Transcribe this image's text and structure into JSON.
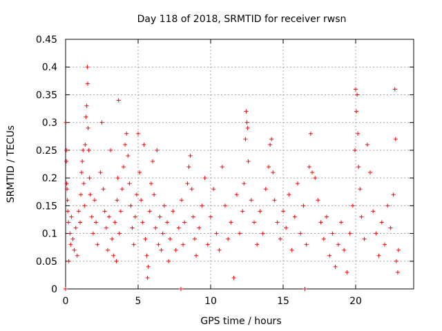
{
  "chart_data": {
    "type": "scatter",
    "title": "Day 118 of 2018, SRMTID for receiver rwsn",
    "xlabel": "GPS time / hours",
    "ylabel": "SRMTID / TECUs",
    "xlim": [
      0,
      24
    ],
    "ylim": [
      0,
      0.45
    ],
    "xticks": [
      0,
      5,
      10,
      15,
      20
    ],
    "xtick_labels": [
      "0",
      "5",
      "10",
      "15",
      "20"
    ],
    "yticks": [
      0,
      0.05,
      0.1,
      0.15,
      0.2,
      0.25,
      0.3,
      0.35,
      0.4,
      0.45
    ],
    "ytick_labels": [
      "0",
      "0.05",
      "0.1",
      "0.15",
      "0.2",
      "0.25",
      "0.3",
      "0.35",
      "0.4",
      "0.45"
    ],
    "grid": true,
    "marker": "+",
    "series": [
      {
        "name": "SRMTID",
        "color": "#ff0000",
        "points": [
          [
            0.0,
            0.0
          ],
          [
            0.02,
            0.3
          ],
          [
            0.05,
            0.25
          ],
          [
            0.05,
            0.23
          ],
          [
            0.07,
            0.19
          ],
          [
            0.1,
            0.18
          ],
          [
            0.12,
            0.16
          ],
          [
            0.15,
            0.14
          ],
          [
            0.2,
            0.12
          ],
          [
            0.22,
            0.05
          ],
          [
            0.3,
            0.1
          ],
          [
            0.35,
            0.08
          ],
          [
            0.4,
            0.13
          ],
          [
            0.5,
            0.09
          ],
          [
            0.6,
            0.07
          ],
          [
            0.7,
            0.11
          ],
          [
            0.8,
            0.06
          ],
          [
            0.9,
            0.14
          ],
          [
            1.0,
            0.12
          ],
          [
            1.05,
            0.17
          ],
          [
            1.1,
            0.21
          ],
          [
            1.15,
            0.23
          ],
          [
            1.2,
            0.25
          ],
          [
            1.25,
            0.19
          ],
          [
            1.3,
            0.15
          ],
          [
            1.35,
            0.26
          ],
          [
            1.4,
            0.31
          ],
          [
            1.45,
            0.33
          ],
          [
            1.5,
            0.4
          ],
          [
            1.52,
            0.37
          ],
          [
            1.55,
            0.29
          ],
          [
            1.6,
            0.25
          ],
          [
            1.65,
            0.2
          ],
          [
            1.7,
            0.17
          ],
          [
            1.8,
            0.13
          ],
          [
            1.9,
            0.1
          ],
          [
            2.0,
            0.16
          ],
          [
            2.1,
            0.12
          ],
          [
            2.2,
            0.08
          ],
          [
            2.4,
            0.21
          ],
          [
            2.5,
            0.3
          ],
          [
            2.6,
            0.18
          ],
          [
            2.7,
            0.14
          ],
          [
            2.8,
            0.11
          ],
          [
            2.9,
            0.07
          ],
          [
            3.0,
            0.13
          ],
          [
            3.1,
            0.25
          ],
          [
            3.2,
            0.09
          ],
          [
            3.3,
            0.06
          ],
          [
            3.4,
            0.12
          ],
          [
            3.5,
            0.05
          ],
          [
            3.55,
            0.16
          ],
          [
            3.6,
            0.2
          ],
          [
            3.65,
            0.34
          ],
          [
            3.7,
            0.1
          ],
          [
            3.8,
            0.14
          ],
          [
            3.9,
            0.18
          ],
          [
            4.0,
            0.22
          ],
          [
            4.1,
            0.26
          ],
          [
            4.2,
            0.28
          ],
          [
            4.3,
            0.24
          ],
          [
            4.4,
            0.19
          ],
          [
            4.5,
            0.15
          ],
          [
            4.6,
            0.11
          ],
          [
            4.7,
            0.08
          ],
          [
            4.8,
            0.13
          ],
          [
            4.9,
            0.17
          ],
          [
            5.0,
            0.28
          ],
          [
            5.1,
            0.21
          ],
          [
            5.2,
            0.16
          ],
          [
            5.3,
            0.12
          ],
          [
            5.4,
            0.26
          ],
          [
            5.5,
            0.09
          ],
          [
            5.6,
            0.06
          ],
          [
            5.65,
            0.02
          ],
          [
            5.7,
            0.04
          ],
          [
            5.8,
            0.14
          ],
          [
            5.9,
            0.19
          ],
          [
            6.0,
            0.23
          ],
          [
            6.1,
            0.17
          ],
          [
            6.2,
            0.11
          ],
          [
            6.3,
            0.25
          ],
          [
            6.4,
            0.08
          ],
          [
            6.5,
            0.13
          ],
          [
            6.6,
            0.07
          ],
          [
            6.7,
            0.1
          ],
          [
            6.8,
            0.15
          ],
          [
            7.0,
            0.12
          ],
          [
            7.1,
            0.05
          ],
          [
            7.2,
            0.09
          ],
          [
            7.4,
            0.14
          ],
          [
            7.6,
            0.07
          ],
          [
            7.8,
            0.11
          ],
          [
            7.95,
            0.0
          ],
          [
            8.0,
            0.16
          ],
          [
            8.1,
            0.08
          ],
          [
            8.2,
            0.12
          ],
          [
            8.4,
            0.19
          ],
          [
            8.5,
            0.22
          ],
          [
            8.6,
            0.24
          ],
          [
            8.7,
            0.18
          ],
          [
            8.8,
            0.13
          ],
          [
            8.9,
            0.09
          ],
          [
            9.0,
            0.06
          ],
          [
            9.2,
            0.11
          ],
          [
            9.4,
            0.15
          ],
          [
            9.6,
            0.2
          ],
          [
            9.8,
            0.08
          ],
          [
            10.0,
            0.13
          ],
          [
            10.2,
            0.18
          ],
          [
            10.4,
            0.1
          ],
          [
            10.6,
            0.07
          ],
          [
            10.8,
            0.22
          ],
          [
            11.0,
            0.15
          ],
          [
            11.2,
            0.09
          ],
          [
            11.4,
            0.12
          ],
          [
            11.6,
            0.02
          ],
          [
            11.8,
            0.17
          ],
          [
            12.0,
            0.1
          ],
          [
            12.2,
            0.14
          ],
          [
            12.3,
            0.19
          ],
          [
            12.4,
            0.27
          ],
          [
            12.45,
            0.32
          ],
          [
            12.5,
            0.3
          ],
          [
            12.55,
            0.29
          ],
          [
            12.6,
            0.23
          ],
          [
            12.8,
            0.16
          ],
          [
            13.0,
            0.12
          ],
          [
            13.2,
            0.08
          ],
          [
            13.4,
            0.14
          ],
          [
            13.6,
            0.1
          ],
          [
            13.8,
            0.18
          ],
          [
            14.0,
            0.22
          ],
          [
            14.1,
            0.26
          ],
          [
            14.2,
            0.27
          ],
          [
            14.3,
            0.21
          ],
          [
            14.4,
            0.16
          ],
          [
            14.6,
            0.12
          ],
          [
            14.8,
            0.09
          ],
          [
            15.0,
            0.14
          ],
          [
            15.2,
            0.11
          ],
          [
            15.4,
            0.17
          ],
          [
            15.6,
            0.07
          ],
          [
            15.8,
            0.13
          ],
          [
            16.0,
            0.19
          ],
          [
            16.2,
            0.1
          ],
          [
            16.4,
            0.15
          ],
          [
            16.5,
            0.0
          ],
          [
            16.6,
            0.08
          ],
          [
            16.8,
            0.22
          ],
          [
            16.9,
            0.28
          ],
          [
            17.0,
            0.21
          ],
          [
            17.2,
            0.2
          ],
          [
            17.4,
            0.16
          ],
          [
            17.6,
            0.12
          ],
          [
            17.8,
            0.09
          ],
          [
            18.0,
            0.13
          ],
          [
            18.2,
            0.06
          ],
          [
            18.4,
            0.1
          ],
          [
            18.6,
            0.04
          ],
          [
            18.8,
            0.08
          ],
          [
            19.0,
            0.12
          ],
          [
            19.2,
            0.07
          ],
          [
            19.4,
            0.03
          ],
          [
            19.6,
            0.1
          ],
          [
            19.8,
            0.15
          ],
          [
            19.95,
            0.25
          ],
          [
            20.0,
            0.36
          ],
          [
            20.05,
            0.32
          ],
          [
            20.1,
            0.35
          ],
          [
            20.15,
            0.28
          ],
          [
            20.2,
            0.22
          ],
          [
            20.3,
            0.18
          ],
          [
            20.4,
            0.13
          ],
          [
            20.6,
            0.09
          ],
          [
            20.8,
            0.26
          ],
          [
            21.0,
            0.21
          ],
          [
            21.2,
            0.14
          ],
          [
            21.4,
            0.1
          ],
          [
            21.6,
            0.06
          ],
          [
            21.8,
            0.12
          ],
          [
            22.0,
            0.08
          ],
          [
            22.2,
            0.15
          ],
          [
            22.4,
            0.11
          ],
          [
            22.6,
            0.17
          ],
          [
            22.7,
            0.36
          ],
          [
            22.75,
            0.27
          ],
          [
            22.8,
            0.05
          ],
          [
            22.9,
            0.03
          ],
          [
            22.95,
            0.07
          ]
        ]
      }
    ]
  }
}
